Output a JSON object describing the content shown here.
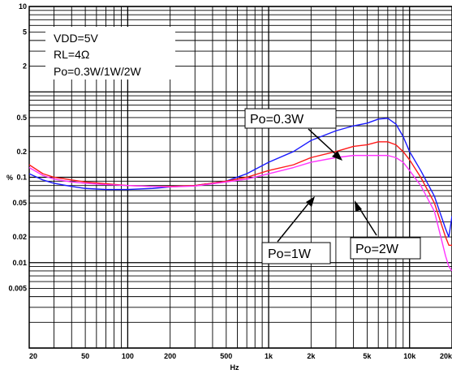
{
  "chart_data": {
    "type": "line",
    "title": "",
    "xlabel": "Hz",
    "ylabel": "%",
    "xscale": "log",
    "yscale": "log",
    "xlim": [
      20,
      20000
    ],
    "ylim": [
      0.001,
      10
    ],
    "grid": true,
    "x_tick_labels": [
      "20",
      "50",
      "100",
      "200",
      "500",
      "1k",
      "2k",
      "5k",
      "10k",
      "20k"
    ],
    "y_tick_labels": [
      "10",
      "5",
      "2",
      "0.5",
      "0.2",
      "0.1",
      "0.05",
      "0.02",
      "0.01",
      "0.005"
    ],
    "conditions": [
      "VDD=5V",
      "RL=4Ω",
      "Po=0.3W/1W/2W"
    ],
    "annotations": [
      "Po=0.3W",
      "Po=1W",
      "Po=2W"
    ],
    "colors": {
      "po_0_3w": "#1a1aff",
      "po_1w": "#ff1a1a",
      "po_2w": "#ff33ff"
    },
    "series": [
      {
        "name": "Po=0.3W",
        "color": "#1a1aff",
        "points": [
          [
            20,
            0.11
          ],
          [
            25,
            0.093
          ],
          [
            30,
            0.085
          ],
          [
            40,
            0.078
          ],
          [
            50,
            0.074
          ],
          [
            70,
            0.072
          ],
          [
            100,
            0.072
          ],
          [
            150,
            0.074
          ],
          [
            200,
            0.077
          ],
          [
            300,
            0.08
          ],
          [
            500,
            0.09
          ],
          [
            700,
            0.11
          ],
          [
            1000,
            0.15
          ],
          [
            1500,
            0.2
          ],
          [
            2000,
            0.27
          ],
          [
            3000,
            0.35
          ],
          [
            4000,
            0.4
          ],
          [
            5000,
            0.43
          ],
          [
            6000,
            0.48
          ],
          [
            7000,
            0.49
          ],
          [
            8000,
            0.42
          ],
          [
            9000,
            0.3
          ],
          [
            10000,
            0.2
          ],
          [
            12000,
            0.12
          ],
          [
            15000,
            0.06
          ],
          [
            18000,
            0.025
          ],
          [
            19000,
            0.02
          ],
          [
            20000,
            0.035
          ]
        ]
      },
      {
        "name": "Po=1W",
        "color": "#ff1a1a",
        "points": [
          [
            20,
            0.14
          ],
          [
            25,
            0.11
          ],
          [
            30,
            0.1
          ],
          [
            40,
            0.093
          ],
          [
            50,
            0.088
          ],
          [
            70,
            0.084
          ],
          [
            100,
            0.08
          ],
          [
            150,
            0.078
          ],
          [
            200,
            0.078
          ],
          [
            300,
            0.08
          ],
          [
            500,
            0.09
          ],
          [
            700,
            0.1
          ],
          [
            1000,
            0.12
          ],
          [
            1500,
            0.14
          ],
          [
            2000,
            0.17
          ],
          [
            3000,
            0.2
          ],
          [
            4000,
            0.23
          ],
          [
            5000,
            0.24
          ],
          [
            6000,
            0.26
          ],
          [
            7000,
            0.26
          ],
          [
            8000,
            0.24
          ],
          [
            9000,
            0.2
          ],
          [
            10000,
            0.16
          ],
          [
            12000,
            0.1
          ],
          [
            15000,
            0.05
          ],
          [
            18000,
            0.02
          ],
          [
            19000,
            0.016
          ],
          [
            20000,
            0.016
          ]
        ]
      },
      {
        "name": "Po=2W",
        "color": "#ff33ff",
        "points": [
          [
            20,
            0.13
          ],
          [
            25,
            0.105
          ],
          [
            30,
            0.095
          ],
          [
            40,
            0.088
          ],
          [
            50,
            0.085
          ],
          [
            70,
            0.082
          ],
          [
            100,
            0.08
          ],
          [
            150,
            0.078
          ],
          [
            200,
            0.077
          ],
          [
            300,
            0.079
          ],
          [
            500,
            0.088
          ],
          [
            700,
            0.095
          ],
          [
            1000,
            0.11
          ],
          [
            1500,
            0.13
          ],
          [
            2000,
            0.15
          ],
          [
            3000,
            0.17
          ],
          [
            4000,
            0.18
          ],
          [
            5000,
            0.18
          ],
          [
            6000,
            0.18
          ],
          [
            7000,
            0.18
          ],
          [
            8000,
            0.17
          ],
          [
            9000,
            0.15
          ],
          [
            10000,
            0.12
          ],
          [
            12000,
            0.08
          ],
          [
            15000,
            0.04
          ],
          [
            18000,
            0.012
          ],
          [
            19000,
            0.009
          ],
          [
            20000,
            0.008
          ]
        ]
      }
    ]
  }
}
